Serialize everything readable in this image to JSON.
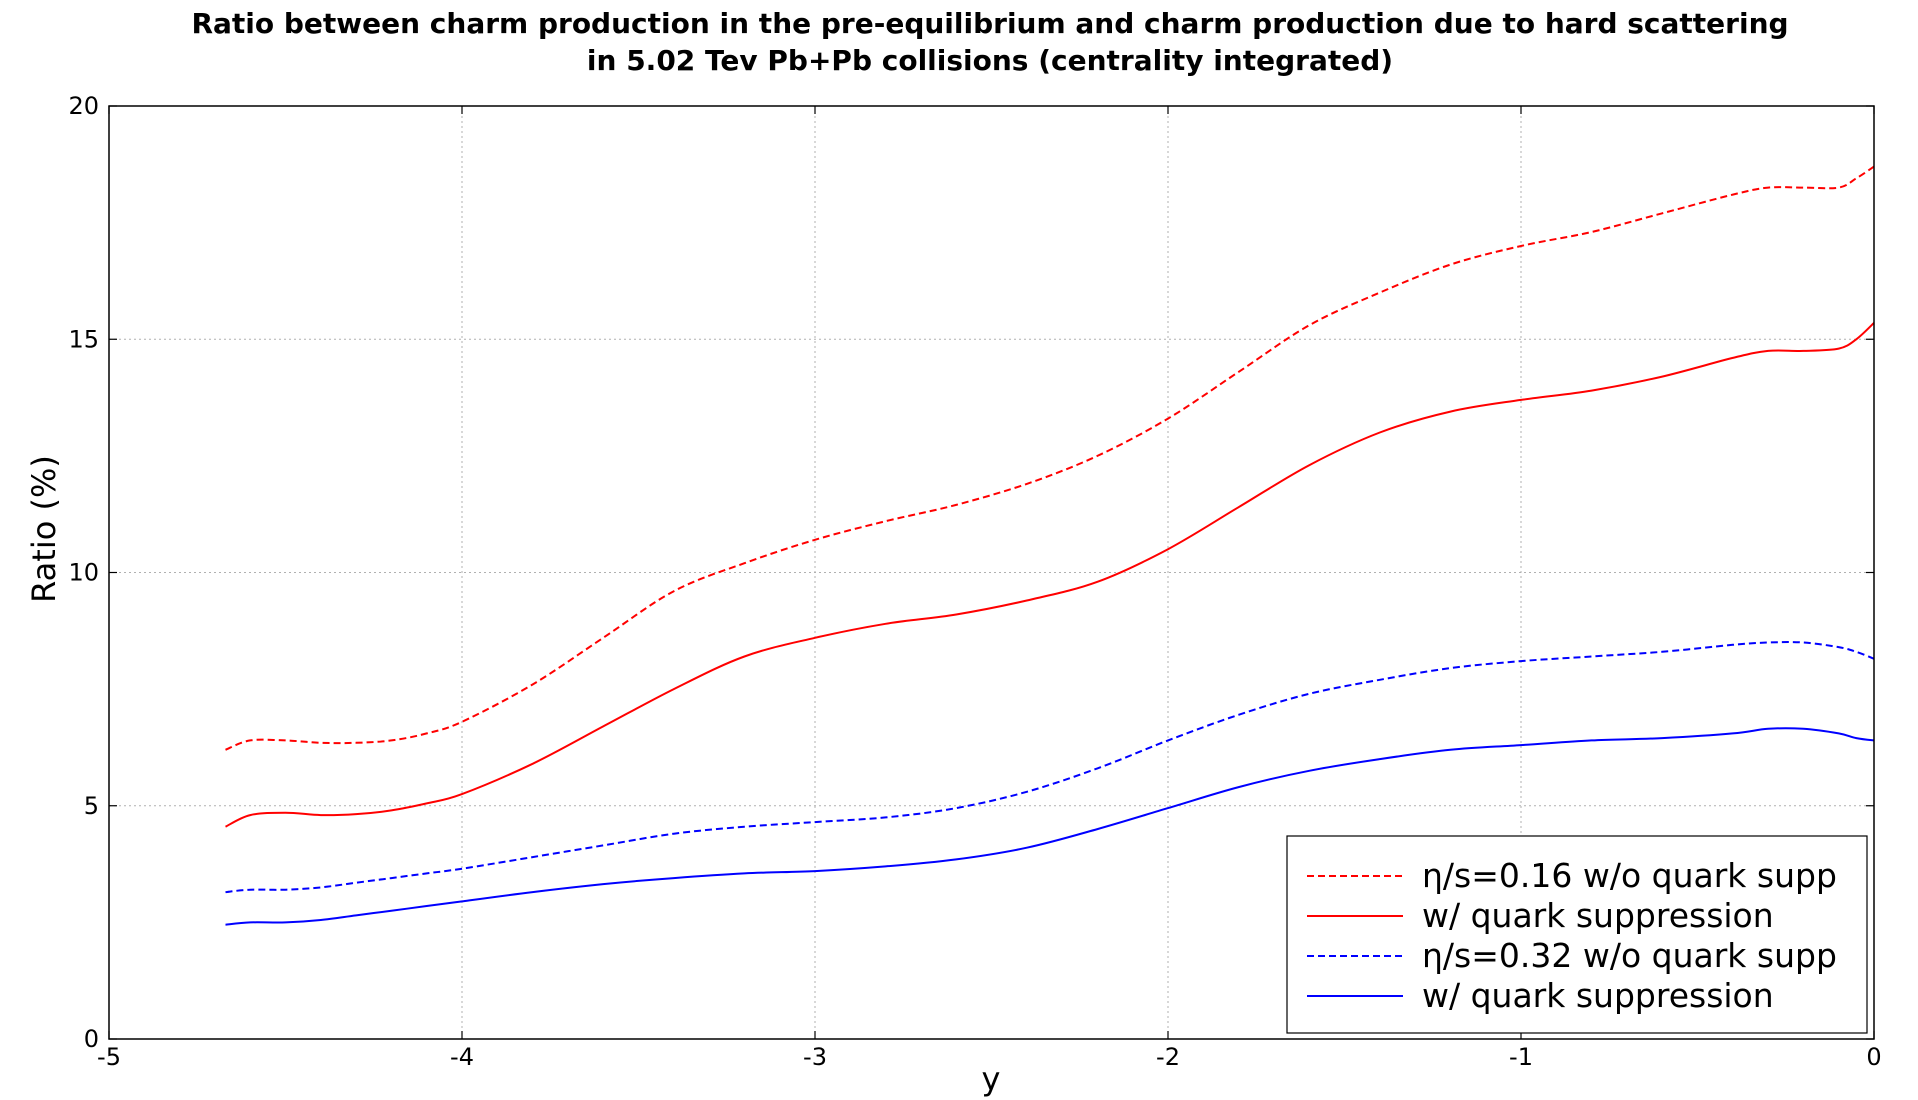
{
  "chart_data": {
    "type": "line",
    "title_lines": [
      "Ratio between charm production in the pre-equilibrium and charm production due to hard scattering",
      "in 5.02 Tev Pb+Pb collisions (centrality integrated)"
    ],
    "xlabel": "y",
    "ylabel": "Ratio (%)",
    "xlim": [
      -5,
      0
    ],
    "ylim": [
      0,
      20
    ],
    "xticks": [
      -5,
      -4,
      -3,
      -2,
      -1,
      0
    ],
    "xtick_labels": [
      "-5",
      "-4",
      "-3",
      "-2",
      "-1",
      "0"
    ],
    "yticks": [
      0,
      5,
      10,
      15,
      20
    ],
    "ytick_labels": [
      "0",
      "5",
      "10",
      "15",
      "20"
    ],
    "grid": true,
    "legend_position": "lower-right",
    "x": [
      -4.67,
      -4.6,
      -4.5,
      -4.4,
      -4.3,
      -4.2,
      -4.1,
      -4.0,
      -3.8,
      -3.6,
      -3.4,
      -3.2,
      -3.0,
      -2.8,
      -2.6,
      -2.4,
      -2.2,
      -2.0,
      -1.8,
      -1.6,
      -1.4,
      -1.2,
      -1.0,
      -0.8,
      -0.6,
      -0.4,
      -0.3,
      -0.2,
      -0.1,
      -0.05,
      0.0
    ],
    "series": [
      {
        "name": "η/s=0.16 w/o quark supp",
        "color": "#ff0000",
        "dash": "dashed",
        "values": [
          6.2,
          6.4,
          6.4,
          6.35,
          6.35,
          6.4,
          6.55,
          6.8,
          7.6,
          8.6,
          9.6,
          10.2,
          10.7,
          11.1,
          11.45,
          11.9,
          12.5,
          13.3,
          14.3,
          15.3,
          16.0,
          16.6,
          17.0,
          17.3,
          17.7,
          18.1,
          18.25,
          18.25,
          18.25,
          18.45,
          18.7
        ]
      },
      {
        "name": "w/ quark suppression",
        "color": "#ff0000",
        "dash": "solid",
        "values": [
          4.55,
          4.8,
          4.85,
          4.8,
          4.82,
          4.9,
          5.05,
          5.25,
          5.9,
          6.7,
          7.5,
          8.2,
          8.6,
          8.9,
          9.1,
          9.4,
          9.8,
          10.5,
          11.4,
          12.3,
          13.0,
          13.45,
          13.7,
          13.9,
          14.2,
          14.6,
          14.75,
          14.75,
          14.8,
          15.0,
          15.35
        ]
      },
      {
        "name": "η/s=0.32 w/o quark supp",
        "color": "#0000ff",
        "dash": "dashed",
        "values": [
          3.15,
          3.2,
          3.2,
          3.25,
          3.35,
          3.45,
          3.55,
          3.65,
          3.9,
          4.15,
          4.4,
          4.55,
          4.65,
          4.75,
          4.95,
          5.3,
          5.8,
          6.4,
          6.95,
          7.4,
          7.7,
          7.95,
          8.1,
          8.2,
          8.3,
          8.45,
          8.5,
          8.5,
          8.4,
          8.3,
          8.15
        ]
      },
      {
        "name": "w/ quark suppression",
        "color": "#0000ff",
        "dash": "solid",
        "values": [
          2.45,
          2.5,
          2.5,
          2.55,
          2.65,
          2.75,
          2.85,
          2.95,
          3.15,
          3.32,
          3.45,
          3.55,
          3.6,
          3.7,
          3.85,
          4.1,
          4.5,
          4.95,
          5.4,
          5.75,
          6.0,
          6.2,
          6.3,
          6.4,
          6.45,
          6.55,
          6.65,
          6.65,
          6.55,
          6.45,
          6.4
        ]
      }
    ]
  }
}
